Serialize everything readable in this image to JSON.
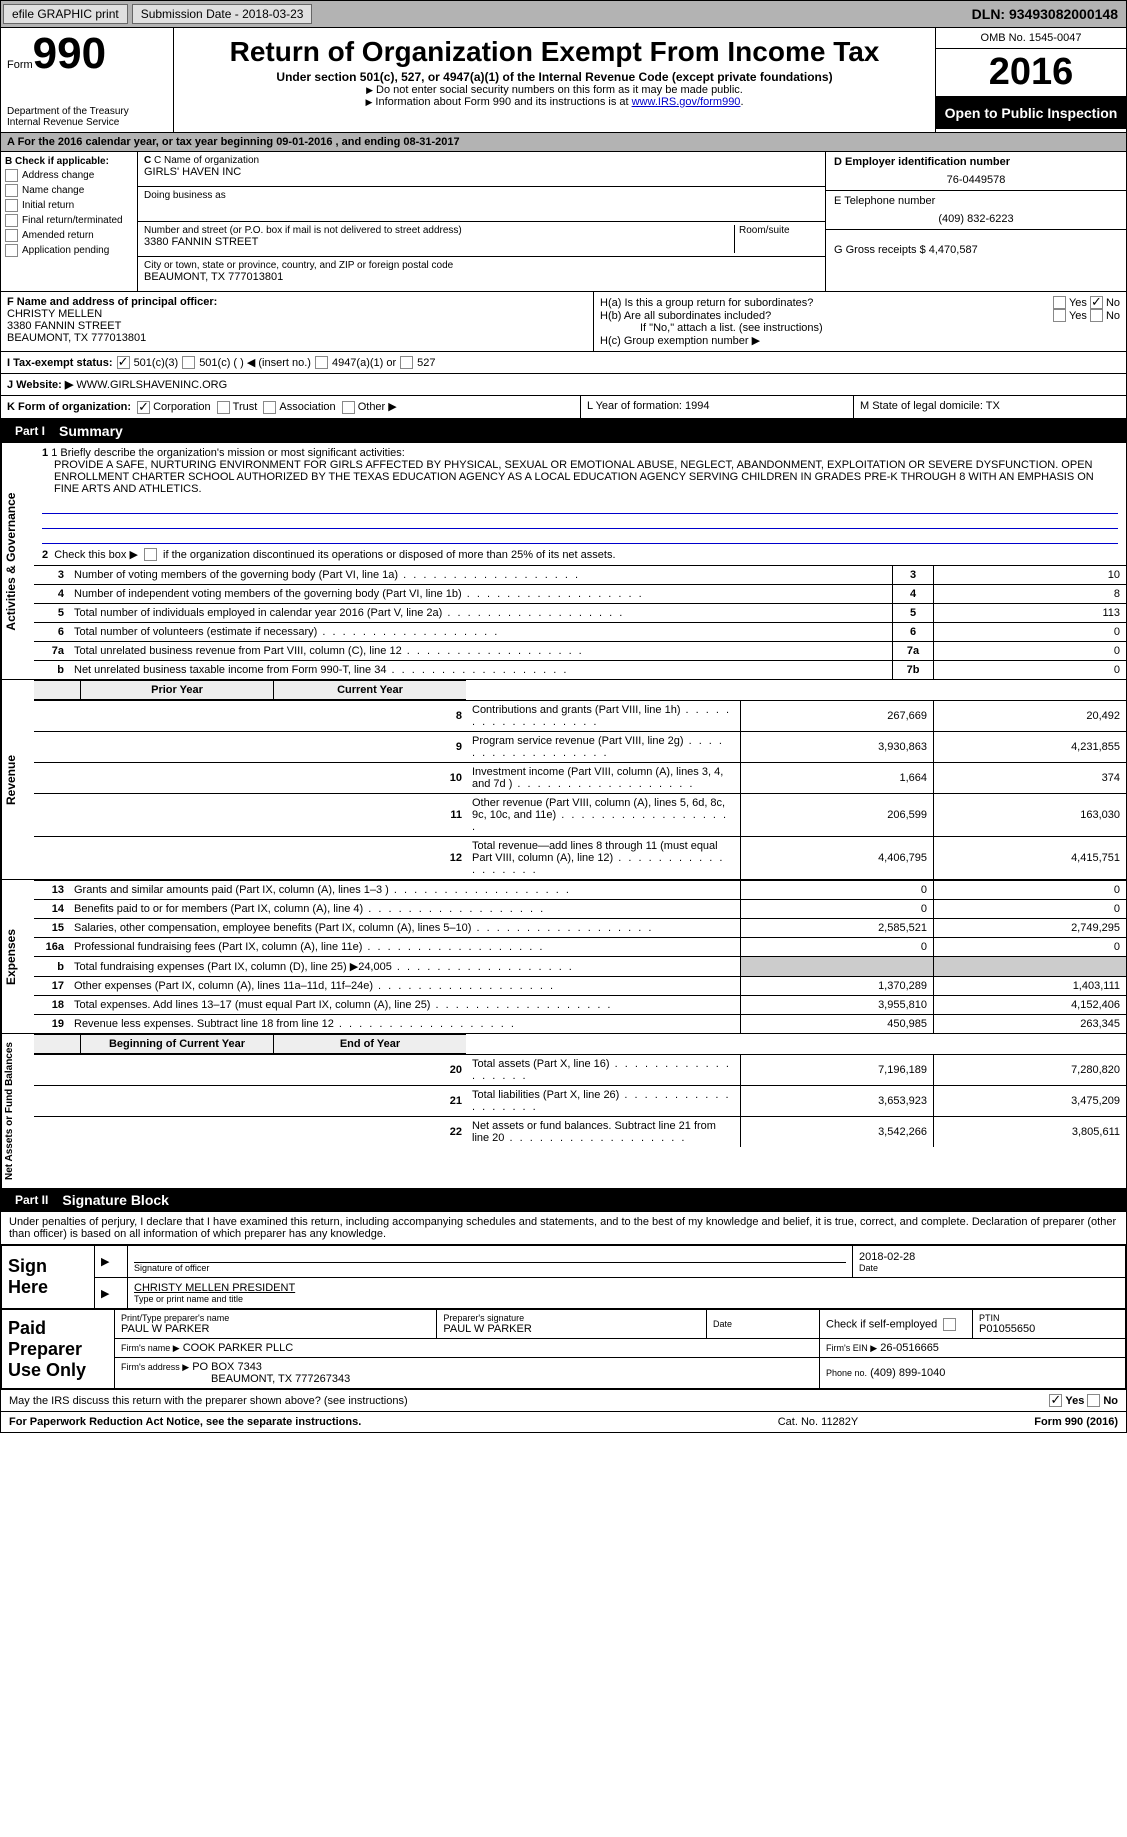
{
  "topbar": {
    "efile": "efile GRAPHIC print",
    "submission": "Submission Date - 2018-03-23",
    "dln": "DLN: 93493082000148"
  },
  "header": {
    "form_label": "Form",
    "form_no": "990",
    "dept1": "Department of the Treasury",
    "dept2": "Internal Revenue Service",
    "title": "Return of Organization Exempt From Income Tax",
    "subtitle": "Under section 501(c), 527, or 4947(a)(1) of the Internal Revenue Code (except private foundations)",
    "note1": "Do not enter social security numbers on this form as it may be made public.",
    "note2_a": "Information about Form 990 and its instructions is at ",
    "note2_link": "www.IRS.gov/form990",
    "omb": "OMB No. 1545-0047",
    "year": "2016",
    "inspection": "Open to Public Inspection"
  },
  "lineA": "A  For the 2016 calendar year, or tax year beginning 09-01-2016   , and ending 08-31-2017",
  "colB": {
    "label": "B Check if applicable:",
    "items": [
      "Address change",
      "Name change",
      "Initial return",
      "Final return/terminated",
      "Amended return",
      "Application pending"
    ]
  },
  "colC": {
    "name_label": "C Name of organization",
    "name": "GIRLS' HAVEN INC",
    "dba_label": "Doing business as",
    "addr_label": "Number and street (or P.O. box if mail is not delivered to street address)",
    "room_label": "Room/suite",
    "addr": "3380 FANNIN STREET",
    "city_label": "City or town, state or province, country, and ZIP or foreign postal code",
    "city": "BEAUMONT, TX  777013801"
  },
  "colD": {
    "ein_label": "D Employer identification number",
    "ein": "76-0449578",
    "tel_label": "E Telephone number",
    "tel": "(409) 832-6223",
    "gross_label": "G Gross receipts $ 4,470,587"
  },
  "colF": {
    "label": "F  Name and address of principal officer:",
    "name": "CHRISTY MELLEN",
    "addr1": "3380 FANNIN STREET",
    "addr2": "BEAUMONT, TX  777013801"
  },
  "colH": {
    "ha": "H(a)  Is this a group return for subordinates?",
    "hb": "H(b)  Are all subordinates included?",
    "hb_note": "If \"No,\" attach a list. (see instructions)",
    "hc": "H(c)  Group exemption number ▶"
  },
  "lineI": {
    "label": "I  Tax-exempt status:",
    "opt1": "501(c)(3)",
    "opt2": "501(c) (  ) ◀ (insert no.)",
    "opt3": "4947(a)(1) or",
    "opt4": "527"
  },
  "lineJ": {
    "label": "J  Website: ▶",
    "val": "WWW.GIRLSHAVENINC.ORG"
  },
  "lineK": {
    "label": "K Form of organization:",
    "opts": [
      "Corporation",
      "Trust",
      "Association",
      "Other ▶"
    ],
    "L": "L Year of formation: 1994",
    "M": "M State of legal domicile: TX"
  },
  "part1": {
    "header": "Part I",
    "title": "Summary",
    "vert1": "Activities & Governance",
    "line1_label": "1 Briefly describe the organization's mission or most significant activities:",
    "line1_text": "PROVIDE A SAFE, NURTURING ENVIRONMENT FOR GIRLS AFFECTED BY PHYSICAL, SEXUAL OR EMOTIONAL ABUSE, NEGLECT, ABANDONMENT, EXPLOITATION OR SEVERE DYSFUNCTION. OPEN ENROLLMENT CHARTER SCHOOL AUTHORIZED BY THE TEXAS EDUCATION AGENCY AS A LOCAL EDUCATION AGENCY SERVING CHILDREN IN GRADES PRE-K THROUGH 8 WITH AN EMPHASIS ON FINE ARTS AND ATHLETICS.",
    "line2": "2  Check this box ▶  if the organization discontinued its operations or disposed of more than 25% of its net assets.",
    "rows_gov": [
      {
        "n": "3",
        "label": "Number of voting members of the governing body (Part VI, line 1a)",
        "box": "3",
        "val": "10"
      },
      {
        "n": "4",
        "label": "Number of independent voting members of the governing body (Part VI, line 1b)",
        "box": "4",
        "val": "8"
      },
      {
        "n": "5",
        "label": "Total number of individuals employed in calendar year 2016 (Part V, line 2a)",
        "box": "5",
        "val": "113"
      },
      {
        "n": "6",
        "label": "Total number of volunteers (estimate if necessary)",
        "box": "6",
        "val": "0"
      },
      {
        "n": "7a",
        "label": "Total unrelated business revenue from Part VIII, column (C), line 12",
        "box": "7a",
        "val": "0"
      },
      {
        "n": "b",
        "label": "Net unrelated business taxable income from Form 990-T, line 34",
        "box": "7b",
        "val": "0"
      }
    ],
    "vert2": "Revenue",
    "prior_hdr": "Prior Year",
    "curr_hdr": "Current Year",
    "rows_rev": [
      {
        "n": "8",
        "label": "Contributions and grants (Part VIII, line 1h)",
        "prior": "267,669",
        "curr": "20,492"
      },
      {
        "n": "9",
        "label": "Program service revenue (Part VIII, line 2g)",
        "prior": "3,930,863",
        "curr": "4,231,855"
      },
      {
        "n": "10",
        "label": "Investment income (Part VIII, column (A), lines 3, 4, and 7d )",
        "prior": "1,664",
        "curr": "374"
      },
      {
        "n": "11",
        "label": "Other revenue (Part VIII, column (A), lines 5, 6d, 8c, 9c, 10c, and 11e)",
        "prior": "206,599",
        "curr": "163,030"
      },
      {
        "n": "12",
        "label": "Total revenue—add lines 8 through 11 (must equal Part VIII, column (A), line 12)",
        "prior": "4,406,795",
        "curr": "4,415,751"
      }
    ],
    "vert3": "Expenses",
    "rows_exp": [
      {
        "n": "13",
        "label": "Grants and similar amounts paid (Part IX, column (A), lines 1–3 )",
        "prior": "0",
        "curr": "0"
      },
      {
        "n": "14",
        "label": "Benefits paid to or for members (Part IX, column (A), line 4)",
        "prior": "0",
        "curr": "0"
      },
      {
        "n": "15",
        "label": "Salaries, other compensation, employee benefits (Part IX, column (A), lines 5–10)",
        "prior": "2,585,521",
        "curr": "2,749,295"
      },
      {
        "n": "16a",
        "label": "Professional fundraising fees (Part IX, column (A), line 11e)",
        "prior": "0",
        "curr": "0"
      },
      {
        "n": "b",
        "label": "Total fundraising expenses (Part IX, column (D), line 25) ▶24,005",
        "prior": "",
        "curr": "",
        "gray": true
      },
      {
        "n": "17",
        "label": "Other expenses (Part IX, column (A), lines 11a–11d, 11f–24e)",
        "prior": "1,370,289",
        "curr": "1,403,111"
      },
      {
        "n": "18",
        "label": "Total expenses. Add lines 13–17 (must equal Part IX, column (A), line 25)",
        "prior": "3,955,810",
        "curr": "4,152,406"
      },
      {
        "n": "19",
        "label": "Revenue less expenses. Subtract line 18 from line 12",
        "prior": "450,985",
        "curr": "263,345"
      }
    ],
    "vert4": "Net Assets or Fund Balances",
    "begin_hdr": "Beginning of Current Year",
    "end_hdr": "End of Year",
    "rows_net": [
      {
        "n": "20",
        "label": "Total assets (Part X, line 16)",
        "prior": "7,196,189",
        "curr": "7,280,820"
      },
      {
        "n": "21",
        "label": "Total liabilities (Part X, line 26)",
        "prior": "3,653,923",
        "curr": "3,475,209"
      },
      {
        "n": "22",
        "label": "Net assets or fund balances. Subtract line 21 from line 20",
        "prior": "3,542,266",
        "curr": "3,805,611"
      }
    ]
  },
  "part2": {
    "header": "Part II",
    "title": "Signature Block",
    "decl": "Under penalties of perjury, I declare that I have examined this return, including accompanying schedules and statements, and to the best of my knowledge and belief, it is true, correct, and complete. Declaration of preparer (other than officer) is based on all information of which preparer has any knowledge.",
    "sign_here": "Sign Here",
    "sig_officer": "Signature of officer",
    "date_val": "2018-02-28",
    "date_label": "Date",
    "name_title": "CHRISTY MELLEN  PRESIDENT",
    "type_label": "Type or print name and title",
    "paid_label": "Paid Preparer Use Only",
    "prep_name_label": "Print/Type preparer's name",
    "prep_name": "PAUL W PARKER",
    "prep_sig_label": "Preparer's signature",
    "prep_sig": "PAUL W PARKER",
    "prep_date_label": "Date",
    "self_emp": "Check  if self-employed",
    "ptin_label": "PTIN",
    "ptin": "P01055650",
    "firm_name_label": "Firm's name   ▶",
    "firm_name": "COOK PARKER PLLC",
    "firm_ein_label": "Firm's EIN ▶",
    "firm_ein": "26-0516665",
    "firm_addr_label": "Firm's address ▶",
    "firm_addr1": "PO BOX 7343",
    "firm_addr2": "BEAUMONT, TX  777267343",
    "firm_phone_label": "Phone no.",
    "firm_phone": "(409) 899-1040"
  },
  "footer": {
    "discuss": "May the IRS discuss this return with the preparer shown above? (see instructions)",
    "paperwork": "For Paperwork Reduction Act Notice, see the separate instructions.",
    "cat": "Cat. No. 11282Y",
    "form": "Form 990 (2016)"
  }
}
